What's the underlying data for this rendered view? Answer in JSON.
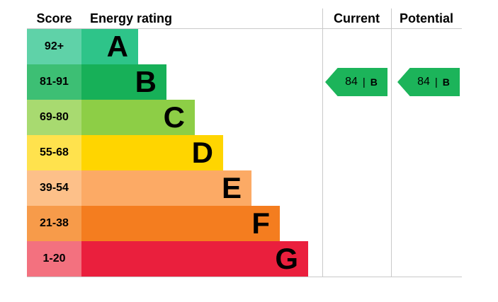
{
  "header": {
    "score": "Score",
    "energy_rating": "Energy rating",
    "current": "Current",
    "potential": "Potential"
  },
  "chart_data": {
    "type": "bar",
    "subtype": "epc-energy-rating",
    "title": "Energy rating",
    "bands": [
      {
        "score": "92+",
        "letter": "A",
        "bar_color": "#2ec489",
        "score_color": "#5fd2a8"
      },
      {
        "score": "81-91",
        "letter": "B",
        "bar_color": "#17b058",
        "score_color": "#3dbf74"
      },
      {
        "score": "69-80",
        "letter": "C",
        "bar_color": "#8dce46",
        "score_color": "#a8da70"
      },
      {
        "score": "55-68",
        "letter": "D",
        "bar_color": "#ffd500",
        "score_color": "#ffe24d"
      },
      {
        "score": "39-54",
        "letter": "E",
        "bar_color": "#fcaa65",
        "score_color": "#fdc089"
      },
      {
        "score": "21-38",
        "letter": "F",
        "bar_color": "#f47d1f",
        "score_color": "#f79b4a"
      },
      {
        "score": "1-20",
        "letter": "G",
        "bar_color": "#ea1f3d",
        "score_color": "#f3717f"
      }
    ],
    "current": {
      "value": "84",
      "separator": "|",
      "letter": "B",
      "arrow_color": "#1cb45a"
    },
    "potential": {
      "value": "84",
      "separator": "|",
      "letter": "B",
      "arrow_color": "#1cb45a"
    }
  }
}
